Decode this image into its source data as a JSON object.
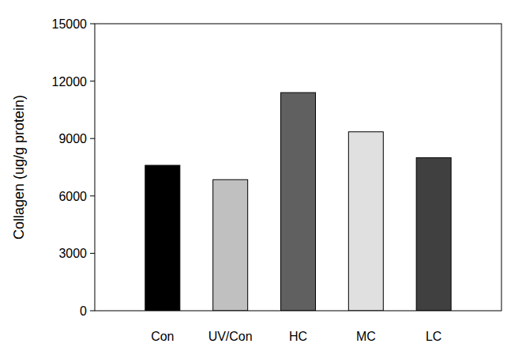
{
  "chart_data": {
    "type": "bar",
    "y_label": "Collagen (ug/g protein)",
    "categories": [
      "Con",
      "UV/Con",
      "HC",
      "MC",
      "LC"
    ],
    "values": [
      7600,
      6850,
      11400,
      9350,
      8000
    ],
    "colors": [
      "#000000",
      "#c0c0c0",
      "#606060",
      "#e0e0e0",
      "#404040"
    ],
    "ylim": [
      0,
      15000
    ],
    "yticks": [
      0,
      3000,
      6000,
      9000,
      12000,
      15000
    ],
    "grid": false
  }
}
